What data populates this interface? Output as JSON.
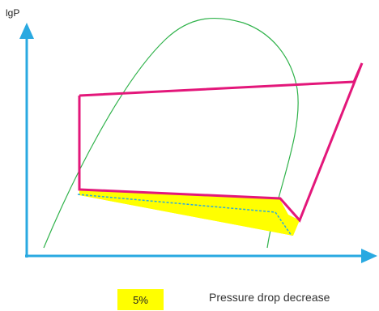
{
  "y_axis_label": "lgP",
  "legend": {
    "percent": "5%",
    "description": "Pressure drop decrease"
  },
  "colors": {
    "axis": "#29a9e1",
    "saturation_curve": "#2fb24a",
    "cycle": "#e3177a",
    "highlight": "#ffff00",
    "reduced_cycle_dashed": "#29a9e1"
  }
}
